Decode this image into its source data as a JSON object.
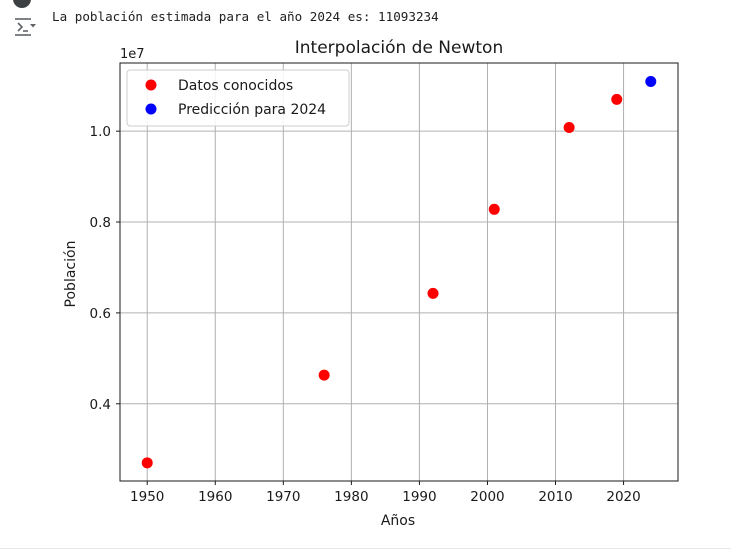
{
  "output": {
    "text": "La población estimada para el año 2024 es: 11093234"
  },
  "icons": {
    "run_indicator": "run-status-icon",
    "output_toggle": "output-actions-icon"
  },
  "chart_data": {
    "type": "scatter",
    "title": "Interpolación de Newton",
    "xlabel": "Años",
    "ylabel": "Población",
    "offset_label": "1e7",
    "xlim": [
      1946,
      2028
    ],
    "ylim": [
      0.23,
      1.15
    ],
    "xticks": [
      1950,
      1960,
      1970,
      1980,
      1990,
      2000,
      2010,
      2020
    ],
    "xtick_labels": [
      "1950",
      "1960",
      "1970",
      "1980",
      "1990",
      "2000",
      "2010",
      "2020"
    ],
    "yticks": [
      0.4,
      0.6,
      0.8,
      1.0
    ],
    "ytick_labels": [
      "0.4",
      "0.6",
      "0.8",
      "1.0"
    ],
    "grid": true,
    "legend_position": "upper-left",
    "series": [
      {
        "name": "Datos conocidos",
        "color": "#ff0000",
        "x": [
          1950,
          1976,
          1992,
          2001,
          2012,
          2019
        ],
        "y": [
          0.27,
          0.463,
          0.643,
          0.828,
          1.008,
          1.07
        ]
      },
      {
        "name": "Predicción para 2024",
        "color": "#0000ff",
        "x": [
          2024
        ],
        "y": [
          1.1093234
        ]
      }
    ]
  }
}
